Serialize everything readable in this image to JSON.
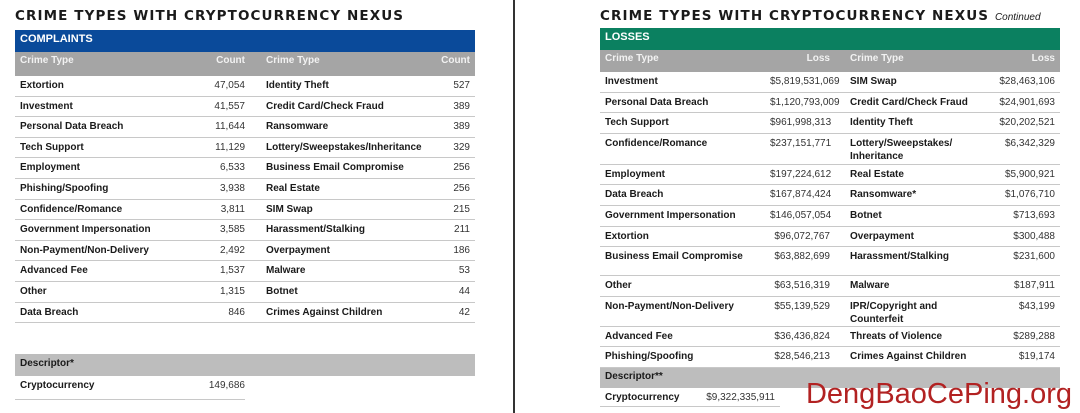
{
  "left": {
    "title": "CRIME TYPES WITH CRYPTOCURRENCY NEXUS",
    "section": "COMPLAINTS",
    "section_color": "#0a4a9a",
    "headers": [
      "Crime Type",
      "Count",
      "Crime Type",
      "Count"
    ],
    "rows": [
      [
        "Extortion",
        "47,054",
        "Identity Theft",
        "527"
      ],
      [
        "Investment",
        "41,557",
        "Credit Card/Check Fraud",
        "389"
      ],
      [
        "Personal Data Breach",
        "11,644",
        "Ransomware",
        "389"
      ],
      [
        "Tech Support",
        "11,129",
        "Lottery/Sweepstakes/Inheritance",
        "329"
      ],
      [
        "Employment",
        "6,533",
        "Business Email Compromise",
        "256"
      ],
      [
        "Phishing/Spoofing",
        "3,938",
        "Real Estate",
        "256"
      ],
      [
        "Confidence/Romance",
        "3,811",
        "SIM Swap",
        "215"
      ],
      [
        "Government Impersonation",
        "3,585",
        "Harassment/Stalking",
        "211"
      ],
      [
        "Non-Payment/Non-Delivery",
        "2,492",
        "Overpayment",
        "186"
      ],
      [
        "Advanced Fee",
        "1,537",
        "Malware",
        "53"
      ],
      [
        "Other",
        "1,315",
        "Botnet",
        "44"
      ],
      [
        "Data Breach",
        "846",
        "Crimes Against Children",
        "42"
      ]
    ],
    "descriptor": "Descriptor*",
    "crypto_label": "Cryptocurrency",
    "crypto_value": "149,686"
  },
  "right": {
    "title": "CRIME TYPES WITH CRYPTOCURRENCY NEXUS",
    "subtitle": "Continued",
    "section": "LOSSES",
    "section_color": "#0b8060",
    "headers": [
      "Crime Type",
      "Loss",
      "Crime Type",
      "Loss"
    ],
    "rows": [
      [
        "Investment",
        "$5,819,531,069",
        "SIM Swap",
        "$28,463,106"
      ],
      [
        "Personal Data Breach",
        "$1,120,793,009",
        "Credit Card/Check Fraud",
        "$24,901,693"
      ],
      [
        "Tech Support",
        "$961,998,313",
        "Identity Theft",
        "$20,202,521"
      ],
      [
        "Confidence/Romance",
        "$237,151,771",
        "Lottery/Sweepstakes/ Inheritance",
        "$6,342,329"
      ],
      [
        "Employment",
        "$197,224,612",
        "Real Estate",
        "$5,900,921"
      ],
      [
        "Data Breach",
        "$167,874,424",
        "Ransomware*",
        "$1,076,710"
      ],
      [
        "Government Impersonation",
        "$146,057,054",
        "Botnet",
        "$713,693"
      ],
      [
        "Extortion",
        "$96,072,767",
        "Overpayment",
        "$300,488"
      ],
      [
        "Business Email Compromise",
        "$63,882,699",
        "Harassment/Stalking",
        "$231,600"
      ],
      [
        "Other",
        "$63,516,319",
        "Malware",
        "$187,911"
      ],
      [
        "Non-Payment/Non-Delivery",
        "$55,139,529",
        "IPR/Copyright and Counterfeit",
        "$43,199"
      ],
      [
        "Advanced Fee",
        "$36,436,824",
        "Threats of Violence",
        "$289,288"
      ],
      [
        "Phishing/Spoofing",
        "$28,546,213",
        "Crimes Against Children",
        "$19,174"
      ]
    ],
    "descriptor": "Descriptor**",
    "crypto_label": "Cryptocurrency",
    "crypto_value": "$9,322,335,911"
  },
  "watermark": "DengBaoCePing.org"
}
